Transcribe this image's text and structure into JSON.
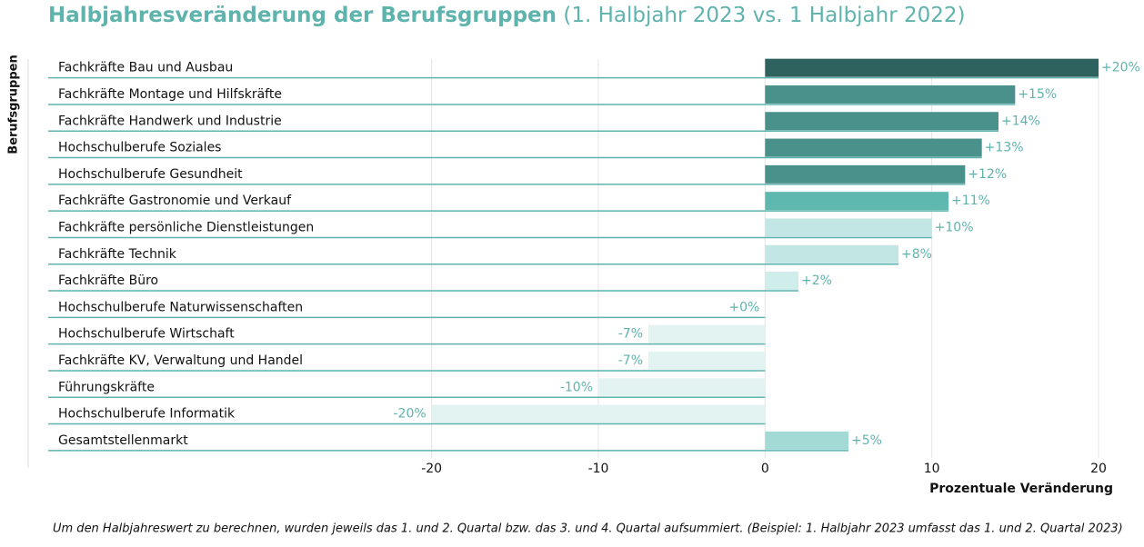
{
  "chart_data": {
    "type": "barh",
    "title": "Halbjahresveränderung der Berufsgruppen",
    "subtitle": "(1. Halbjahr 2023 vs. 1 Halbjahr 2022)",
    "ylabel": "Berufsgruppen",
    "xlabel": "Prozentuale Veränderung",
    "note": "Um den Halbjahreswert zu berechnen, wurden jeweils das 1. und 2. Quartal bzw. das 3. und 4. Quartal aufsummiert. (Beispiel: 1. Halbjahr 2023 umfasst das 1. und 2. Quartal 2023)",
    "categories": [
      "Fachkräfte Bau und Ausbau",
      "Fachkräfte Montage und Hilfskräfte",
      "Fachkräfte Handwerk und Industrie",
      "Hochschulberufe Soziales",
      "Hochschulberufe Gesundheit",
      "Fachkräfte Gastronomie und Verkauf",
      "Fachkräfte persönliche Dienstleistungen",
      "Fachkräfte Technik",
      "Fachkräfte Büro",
      "Hochschulberufe Naturwissenschaften",
      "Hochschulberufe Wirtschaft",
      "Fachkräfte KV, Verwaltung und Handel",
      "Führungskräfte",
      "Hochschulberufe Informatik",
      "Gesamtstellenmarkt"
    ],
    "values": [
      20,
      15,
      14,
      13,
      12,
      11,
      10,
      8,
      2,
      0,
      -7,
      -7,
      -10,
      -20,
      5
    ],
    "value_labels": [
      "+20%",
      "+15%",
      "+14%",
      "+13%",
      "+12%",
      "+11%",
      "+10%",
      "+8%",
      "+2%",
      "+0%",
      "-7%",
      "-7%",
      "-10%",
      "-20%",
      "+5%"
    ],
    "colors": [
      "#2e625f",
      "#4a918c",
      "#4a918c",
      "#4a918c",
      "#4a918c",
      "#5fb8b0",
      "#c2e6e3",
      "#c2e6e3",
      "#cfeeeb",
      "#e3f3f2",
      "#e3f3f2",
      "#e3f3f2",
      "#e3f3f2",
      "#e3f3f2",
      "#a3dad6"
    ],
    "xlim": [
      -43,
      20
    ],
    "xticks": [
      -20,
      -10,
      0,
      10,
      20
    ],
    "grid": true
  }
}
